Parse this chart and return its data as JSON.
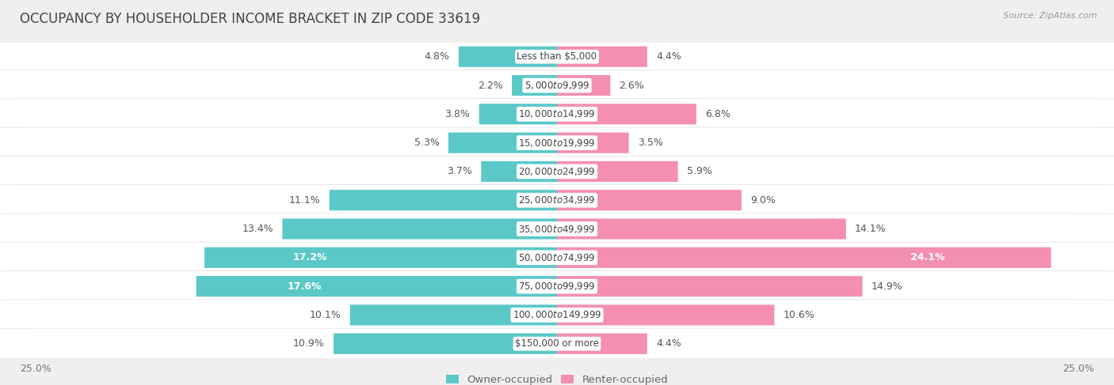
{
  "title": "OCCUPANCY BY HOUSEHOLDER INCOME BRACKET IN ZIP CODE 33619",
  "source": "Source: ZipAtlas.com",
  "categories": [
    "Less than $5,000",
    "$5,000 to $9,999",
    "$10,000 to $14,999",
    "$15,000 to $19,999",
    "$20,000 to $24,999",
    "$25,000 to $34,999",
    "$35,000 to $49,999",
    "$50,000 to $74,999",
    "$75,000 to $99,999",
    "$100,000 to $149,999",
    "$150,000 or more"
  ],
  "owner_values": [
    4.8,
    2.2,
    3.8,
    5.3,
    3.7,
    11.1,
    13.4,
    17.2,
    17.6,
    10.1,
    10.9
  ],
  "renter_values": [
    4.4,
    2.6,
    6.8,
    3.5,
    5.9,
    9.0,
    14.1,
    24.1,
    14.9,
    10.6,
    4.4
  ],
  "owner_color": "#5BC8C8",
  "renter_color": "#F48FB1",
  "background_color": "#efefef",
  "row_bg_color": "#e8e8e8",
  "bar_background": "#ffffff",
  "max_value": 25.0,
  "title_fontsize": 12,
  "label_fontsize": 9,
  "category_fontsize": 8.5,
  "legend_fontsize": 9.5,
  "owner_inside_threshold": 14.0,
  "renter_inside_threshold": 20.0
}
